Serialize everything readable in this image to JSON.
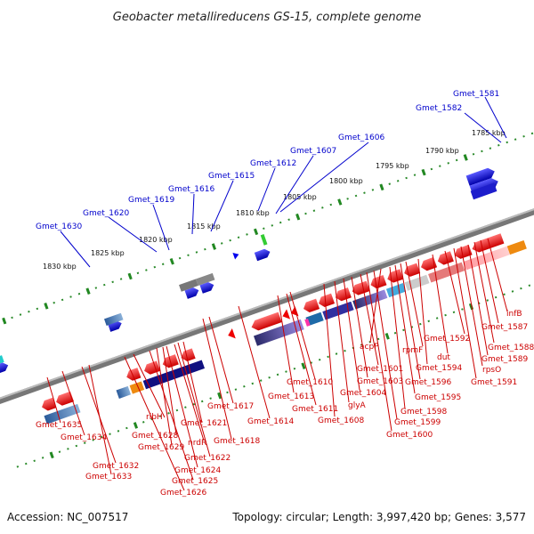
{
  "title": "Geobacter metallireducens GS-15, complete genome",
  "accession": "Accession: NC_007517",
  "topology": "Topology: circular; Length: 3,997,420 bp; Genes: 3,577",
  "ticks": [
    "1785 kbp",
    "1790 kbp",
    "1795 kbp",
    "1800 kbp",
    "1805 kbp",
    "1810 kbp",
    "1815 kbp",
    "1820 kbp",
    "1825 kbp",
    "1830 kbp"
  ],
  "top_labels": [
    "Gmet_1581",
    "Gmet_1582",
    "Gmet_1606",
    "Gmet_1607",
    "Gmet_1612",
    "Gmet_1615",
    "Gmet_1616",
    "Gmet_1619",
    "Gmet_1620",
    "Gmet_1630"
  ],
  "bottom_labels": [
    "infB",
    "Gmet_1587",
    "Gmet_1588",
    "Gmet_1589",
    "rpsO",
    "Gmet_1591",
    "Gmet_1592",
    "dut",
    "Gmet_1594",
    "rpmF",
    "Gmet_1596",
    "Gmet_1595",
    "acpP",
    "Gmet_1598",
    "Gmet_1599",
    "Gmet_1600",
    "Gmet_1601",
    "Gmet_1603",
    "Gmet_1604",
    "glyA",
    "Gmet_1608",
    "Gmet_1610",
    "Gmet_1611",
    "Gmet_1613",
    "Gmet_1614",
    "Gmet_1617",
    "Gmet_1618",
    "ribH",
    "Gmet_1621",
    "nrdR",
    "Gmet_1628",
    "Gmet_1629",
    "Gmet_1622",
    "Gmet_1624",
    "Gmet_1625",
    "Gmet_1626",
    "Gmet_1635",
    "Gmet_1634",
    "Gmet_1632",
    "Gmet_1633"
  ],
  "colors": {
    "forward_gene": "#0000ee",
    "reverse_gene": "#ee0000",
    "backbone": "#777777",
    "tick_mark": "#228822",
    "top_label": "#0000cc",
    "bottom_label": "#cc0000"
  }
}
